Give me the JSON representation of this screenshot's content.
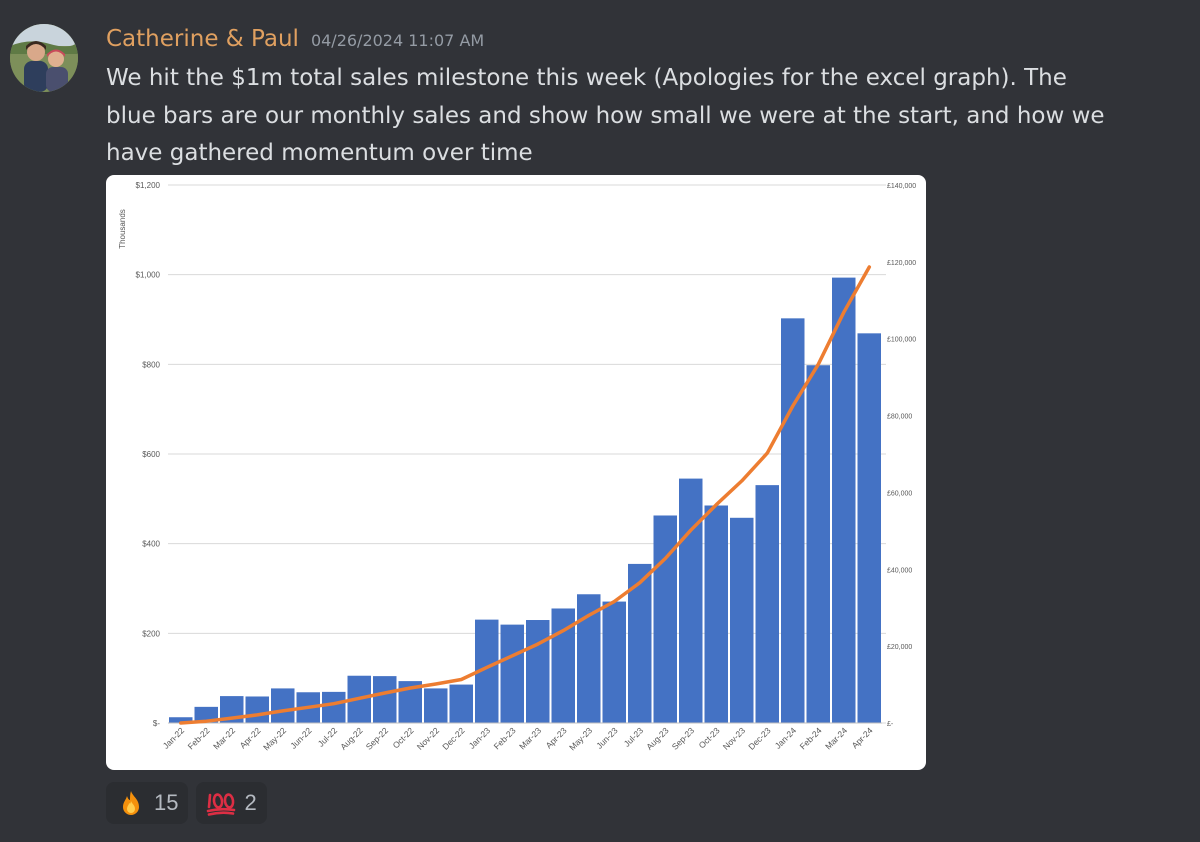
{
  "message": {
    "username": "Catherine & Paul",
    "timestamp": "04/26/2024 11:07 AM",
    "text": "We hit the $1m total sales milestone this week (Apologies for the excel graph).  The blue bars are our monthly sales and show how small we were at the start, and how we have gathered momentum over time"
  },
  "reactions": [
    {
      "icon": "fire-icon",
      "count": "15"
    },
    {
      "icon": "hundred-points-icon",
      "count": "2"
    }
  ],
  "colors": {
    "username": "#e0a060",
    "bar": "#4472c4",
    "line": "#ed7d31",
    "background": "#313338"
  },
  "chart_data": {
    "type": "bar",
    "categories": [
      "Jan-22",
      "Feb-22",
      "Mar-22",
      "Apr-22",
      "May-22",
      "Jun-22",
      "Jul-22",
      "Aug-22",
      "Sep-22",
      "Oct-22",
      "Nov-22",
      "Dec-22",
      "Jan-23",
      "Feb-23",
      "Mar-23",
      "Apr-23",
      "May-23",
      "Jun-23",
      "Jul-23",
      "Aug-23",
      "Sep-23",
      "Oct-23",
      "Nov-23",
      "Dec-23",
      "Jan-24",
      "Feb-24",
      "Mar-24",
      "Apr-24"
    ],
    "series": [
      {
        "type": "bar",
        "axis": "right",
        "values": [
          1500,
          4200,
          7000,
          6900,
          9000,
          8000,
          8100,
          12300,
          12200,
          10900,
          9000,
          10000,
          26900,
          25600,
          26800,
          29800,
          33500,
          31600,
          41400,
          54000,
          63600,
          56600,
          53400,
          61900,
          105300,
          93100,
          115900,
          101400
        ]
      },
      {
        "type": "line",
        "axis": "left",
        "values": [
          0,
          4,
          11,
          18,
          27,
          35,
          43,
          55,
          67,
          78,
          87,
          97,
          124,
          150,
          176,
          206,
          240,
          271,
          313,
          367,
          430,
          487,
          540,
          602,
          707,
          800,
          916,
          1017
        ]
      }
    ],
    "ylabel": "Thousands",
    "yticks_left": [
      "$-",
      "$200",
      "$400",
      "$600",
      "$800",
      "$1,000",
      "$1,200"
    ],
    "ylim_left": [
      0,
      1200
    ],
    "yticks_right": [
      "£-",
      "£20,000",
      "£40,000",
      "£60,000",
      "£80,000",
      "£100,000",
      "£120,000",
      "£140,000"
    ],
    "ylim_right": [
      0,
      140000
    ],
    "grid": true
  }
}
